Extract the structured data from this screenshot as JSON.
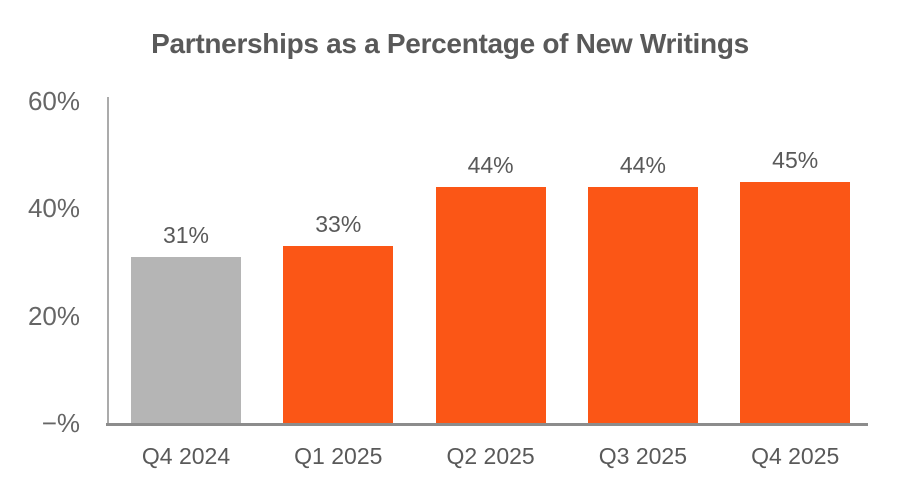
{
  "chart_data": {
    "type": "bar",
    "title": "Partnerships as a Percentage of New Writings",
    "categories": [
      "Q4 2024",
      "Q1 2025",
      "Q2 2025",
      "Q3 2025",
      "Q4 2025"
    ],
    "values": [
      31,
      33,
      44,
      44,
      45
    ],
    "data_labels": [
      "31%",
      "33%",
      "44%",
      "44%",
      "45%"
    ],
    "bar_colors": [
      "#B5B5B5",
      "#FB5616",
      "#FB5616",
      "#FB5616",
      "#FB5616"
    ],
    "y_ticks": [
      {
        "value": 60,
        "label": "60%"
      },
      {
        "value": 40,
        "label": "40%"
      },
      {
        "value": 20,
        "label": "20%"
      },
      {
        "value": 0,
        "label": "−%"
      }
    ],
    "ylim": [
      0,
      60
    ],
    "xlabel": "",
    "ylabel": "",
    "grid": false,
    "legend": false,
    "highlight_color": "#FB5616",
    "muted_color": "#B5B5B5"
  },
  "colors": {
    "title_text": "#595959",
    "label_text": "#595959",
    "tick_text": "#666666",
    "axis_line": "#ABABAB",
    "baseline": "#8C8C8C",
    "background": "#FFFFFF"
  }
}
